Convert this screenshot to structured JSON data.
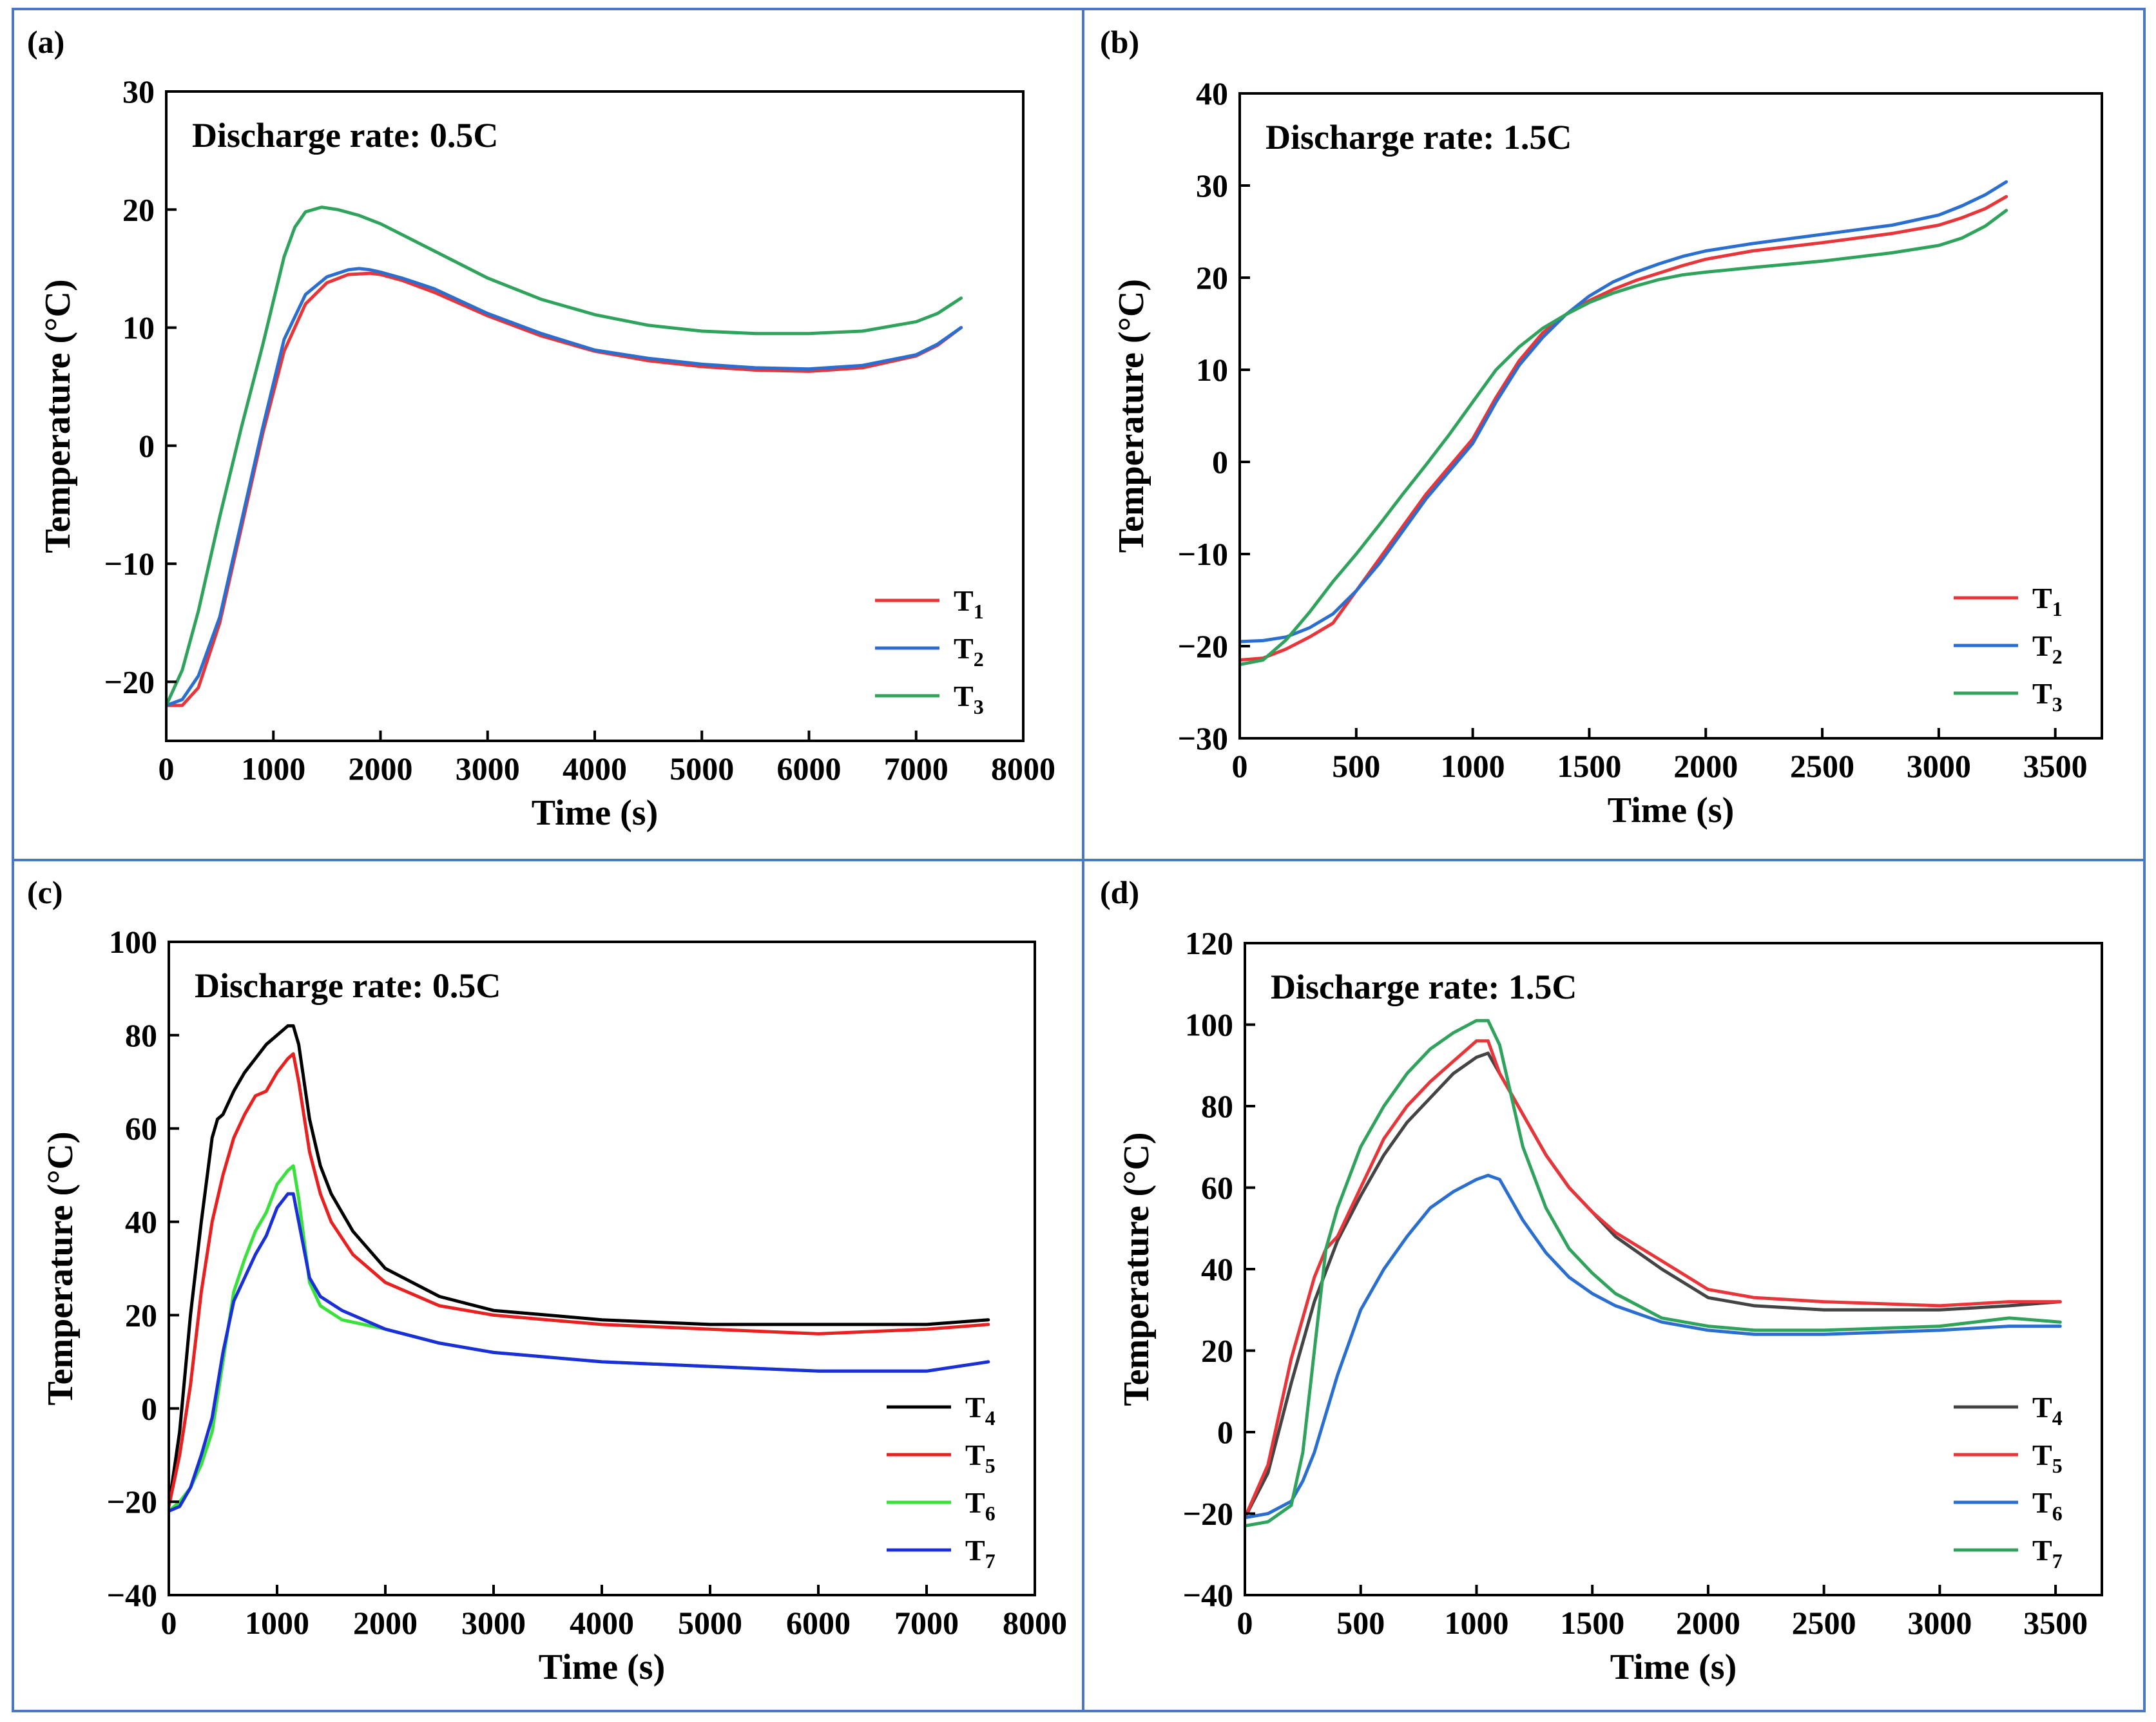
{
  "colors": {
    "frame": "#4a78c4",
    "T1": "#e8353a",
    "T2": "#2a6fd0",
    "T3": "#2fa35c",
    "T4c": "#000000",
    "T5c": "#e8201f",
    "T6c": "#38e23a",
    "T7c": "#1b2fd8",
    "T4d": "#444444",
    "T5d": "#e8353a",
    "T6d": "#2a6fd0",
    "T7d": "#2fa35c"
  },
  "chart_data": [
    {
      "id": "a",
      "panel_label": "(a)",
      "type": "line",
      "annotation": "Discharge rate: 0.5C",
      "xlabel": "Time (s)",
      "ylabel": "Temperature (°C)",
      "xlim": [
        0,
        8000
      ],
      "ylim": [
        -25,
        30
      ],
      "xticks": [
        0,
        1000,
        2000,
        3000,
        4000,
        5000,
        6000,
        7000,
        8000
      ],
      "yticks": [
        -20,
        -10,
        0,
        10,
        20,
        30
      ],
      "ytick_labels": [
        "−20",
        "−10",
        "0",
        "10",
        "20",
        "30"
      ],
      "legend_position": "bottom-right",
      "series": [
        {
          "name": "T",
          "sub": "1",
          "color_key": "T1",
          "x": [
            0,
            150,
            300,
            500,
            700,
            900,
            1100,
            1300,
            1500,
            1700,
            1900,
            2000,
            2200,
            2500,
            3000,
            3500,
            4000,
            4500,
            5000,
            5500,
            6000,
            6500,
            7000,
            7200,
            7420
          ],
          "y": [
            -22,
            -22,
            -20.5,
            -15,
            -7,
            1,
            8,
            12,
            13.8,
            14.5,
            14.6,
            14.5,
            14,
            13,
            11,
            9.3,
            8,
            7.2,
            6.7,
            6.4,
            6.3,
            6.6,
            7.6,
            8.5,
            10
          ]
        },
        {
          "name": "T",
          "sub": "2",
          "color_key": "T2",
          "x": [
            0,
            150,
            300,
            500,
            700,
            900,
            1100,
            1300,
            1500,
            1700,
            1800,
            1900,
            2000,
            2200,
            2500,
            3000,
            3500,
            4000,
            4500,
            5000,
            5500,
            6000,
            6500,
            7000,
            7200,
            7420
          ],
          "y": [
            -22,
            -21.5,
            -19.5,
            -14.5,
            -6.5,
            1.5,
            9,
            12.8,
            14.3,
            14.9,
            15,
            14.9,
            14.7,
            14.2,
            13.3,
            11.2,
            9.5,
            8.1,
            7.4,
            6.9,
            6.6,
            6.5,
            6.8,
            7.7,
            8.6,
            10
          ]
        },
        {
          "name": "T",
          "sub": "3",
          "color_key": "T3",
          "x": [
            0,
            150,
            300,
            500,
            700,
            900,
            1100,
            1200,
            1300,
            1450,
            1600,
            1800,
            2000,
            2500,
            3000,
            3500,
            4000,
            4500,
            5000,
            5500,
            6000,
            6500,
            7000,
            7200,
            7420
          ],
          "y": [
            -22,
            -19,
            -14,
            -6,
            1.5,
            8.5,
            16,
            18.5,
            19.8,
            20.2,
            20,
            19.5,
            18.8,
            16.5,
            14.2,
            12.4,
            11.1,
            10.2,
            9.7,
            9.5,
            9.5,
            9.7,
            10.5,
            11.2,
            12.5
          ]
        }
      ]
    },
    {
      "id": "b",
      "panel_label": "(b)",
      "type": "line",
      "annotation": "Discharge rate: 1.5C",
      "xlabel": "Time (s)",
      "ylabel": "Temperature (°C)",
      "xlim": [
        0,
        3700
      ],
      "ylim": [
        -30,
        40
      ],
      "xticks": [
        0,
        500,
        1000,
        1500,
        2000,
        2500,
        3000,
        3500
      ],
      "yticks": [
        -30,
        -20,
        -10,
        0,
        10,
        20,
        30,
        40
      ],
      "ytick_labels": [
        "−30",
        "−20",
        "−10",
        "0",
        "10",
        "20",
        "30",
        "40"
      ],
      "legend_position": "bottom-right",
      "series": [
        {
          "name": "T",
          "sub": "1",
          "color_key": "T1",
          "x": [
            0,
            100,
            200,
            300,
            400,
            500,
            600,
            700,
            800,
            900,
            1000,
            1100,
            1200,
            1300,
            1400,
            1500,
            1600,
            1700,
            1800,
            1900,
            2000,
            2200,
            2500,
            2800,
            3000,
            3100,
            3200,
            3290
          ],
          "y": [
            -21.5,
            -21.3,
            -20.3,
            -19,
            -17.5,
            -14,
            -10.5,
            -7,
            -3.5,
            -0.5,
            2.5,
            7,
            11,
            14,
            16,
            17.5,
            18.7,
            19.7,
            20.5,
            21.3,
            22,
            22.9,
            23.8,
            24.8,
            25.7,
            26.5,
            27.5,
            28.8
          ]
        },
        {
          "name": "T",
          "sub": "2",
          "color_key": "T2",
          "x": [
            0,
            100,
            200,
            300,
            400,
            500,
            600,
            700,
            800,
            900,
            1000,
            1100,
            1200,
            1300,
            1400,
            1500,
            1600,
            1700,
            1800,
            1900,
            2000,
            2200,
            2500,
            2800,
            3000,
            3100,
            3200,
            3290
          ],
          "y": [
            -19.5,
            -19.4,
            -19,
            -18,
            -16.5,
            -14,
            -11,
            -7.5,
            -4,
            -1,
            2,
            6.5,
            10.5,
            13.5,
            16,
            18,
            19.5,
            20.6,
            21.5,
            22.3,
            22.9,
            23.7,
            24.7,
            25.7,
            26.8,
            27.8,
            29,
            30.4
          ]
        },
        {
          "name": "T",
          "sub": "3",
          "color_key": "T3",
          "x": [
            0,
            100,
            200,
            300,
            400,
            500,
            600,
            700,
            800,
            900,
            1000,
            1100,
            1200,
            1300,
            1400,
            1500,
            1600,
            1700,
            1800,
            1900,
            2000,
            2200,
            2500,
            2800,
            3000,
            3100,
            3200,
            3290
          ],
          "y": [
            -22,
            -21.5,
            -19.3,
            -16.3,
            -13,
            -10,
            -6.8,
            -3.5,
            -0.3,
            3,
            6.5,
            10,
            12.5,
            14.5,
            16,
            17.3,
            18.3,
            19.1,
            19.8,
            20.3,
            20.6,
            21.1,
            21.8,
            22.7,
            23.5,
            24.3,
            25.6,
            27.3
          ]
        }
      ]
    },
    {
      "id": "c",
      "panel_label": "(c)",
      "type": "line",
      "annotation": "Discharge rate: 0.5C",
      "xlabel": "Time (s)",
      "ylabel": "Temperature (°C)",
      "xlim": [
        0,
        8000
      ],
      "ylim": [
        -40,
        100
      ],
      "xticks": [
        0,
        1000,
        2000,
        3000,
        4000,
        5000,
        6000,
        7000,
        8000
      ],
      "yticks": [
        -40,
        -20,
        0,
        20,
        40,
        60,
        80,
        100
      ],
      "ytick_labels": [
        "−40",
        "−20",
        "0",
        "20",
        "40",
        "60",
        "80",
        "100"
      ],
      "legend_position": "bottom-right",
      "series": [
        {
          "name": "T",
          "sub": "4",
          "color_key": "T4c",
          "x": [
            0,
            100,
            200,
            300,
            400,
            450,
            500,
            600,
            700,
            800,
            900,
            1000,
            1100,
            1150,
            1200,
            1300,
            1400,
            1500,
            1700,
            2000,
            2500,
            3000,
            3500,
            4000,
            5000,
            6000,
            7000,
            7570
          ],
          "y": [
            -21,
            -5,
            20,
            40,
            58,
            62,
            63,
            68,
            72,
            75,
            78,
            80,
            82,
            82,
            78,
            62,
            52,
            46,
            38,
            30,
            24,
            21,
            20,
            19,
            18,
            18,
            18,
            19
          ]
        },
        {
          "name": "T",
          "sub": "5",
          "color_key": "T5c",
          "x": [
            0,
            100,
            200,
            300,
            400,
            500,
            600,
            700,
            800,
            900,
            1000,
            1100,
            1150,
            1200,
            1300,
            1400,
            1500,
            1700,
            2000,
            2500,
            3000,
            3500,
            4000,
            5000,
            6000,
            7000,
            7570
          ],
          "y": [
            -21,
            -10,
            5,
            25,
            40,
            50,
            58,
            63,
            67,
            68,
            72,
            75,
            76,
            70,
            55,
            46,
            40,
            33,
            27,
            22,
            20,
            19,
            18,
            17,
            16,
            17,
            18
          ]
        },
        {
          "name": "T",
          "sub": "6",
          "color_key": "T6c",
          "x": [
            0,
            100,
            200,
            300,
            400,
            500,
            600,
            700,
            800,
            900,
            1000,
            1100,
            1150,
            1200,
            1300,
            1400,
            1600,
            2000,
            2500,
            3000,
            3500,
            4000,
            5000,
            6000,
            7000,
            7570
          ],
          "y": [
            -22,
            -20,
            -17,
            -12,
            -5,
            10,
            25,
            32,
            38,
            42,
            48,
            51,
            52,
            45,
            27,
            22,
            19,
            17,
            14,
            12,
            11,
            10,
            9,
            8,
            8,
            10
          ]
        },
        {
          "name": "T",
          "sub": "7",
          "color_key": "T7c",
          "x": [
            0,
            100,
            200,
            300,
            400,
            500,
            600,
            700,
            800,
            900,
            1000,
            1100,
            1150,
            1200,
            1300,
            1400,
            1600,
            2000,
            2500,
            3000,
            3500,
            4000,
            5000,
            6000,
            7000,
            7570
          ],
          "y": [
            -22,
            -21,
            -17,
            -10,
            -2,
            12,
            23,
            28,
            33,
            37,
            43,
            46,
            46,
            40,
            28,
            24,
            21,
            17,
            14,
            12,
            11,
            10,
            9,
            8,
            8,
            10
          ]
        }
      ]
    },
    {
      "id": "d",
      "panel_label": "(d)",
      "type": "line",
      "annotation": "Discharge rate: 1.5C",
      "xlabel": "Time (s)",
      "ylabel": "Temperature (°C)",
      "xlim": [
        0,
        3700
      ],
      "ylim": [
        -40,
        120
      ],
      "xticks": [
        0,
        500,
        1000,
        1500,
        2000,
        2500,
        3000,
        3500
      ],
      "yticks": [
        -40,
        -20,
        0,
        20,
        40,
        60,
        80,
        100,
        120
      ],
      "ytick_labels": [
        "−40",
        "−20",
        "0",
        "20",
        "40",
        "60",
        "80",
        "100",
        "120"
      ],
      "legend_position": "bottom-right",
      "series": [
        {
          "name": "T",
          "sub": "4",
          "color_key": "T4d",
          "x": [
            0,
            100,
            200,
            300,
            400,
            500,
            600,
            700,
            800,
            900,
            1000,
            1050,
            1100,
            1200,
            1300,
            1400,
            1500,
            1600,
            1800,
            2000,
            2200,
            2500,
            3000,
            3300,
            3520
          ],
          "y": [
            -21,
            -10,
            12,
            32,
            47,
            58,
            68,
            76,
            82,
            88,
            92,
            93,
            88,
            78,
            68,
            60,
            54,
            48,
            40,
            33,
            31,
            30,
            30,
            31,
            32
          ]
        },
        {
          "name": "T",
          "sub": "5",
          "color_key": "T5d",
          "x": [
            0,
            100,
            200,
            300,
            350,
            400,
            500,
            600,
            700,
            800,
            900,
            1000,
            1050,
            1100,
            1200,
            1300,
            1400,
            1500,
            1600,
            1800,
            2000,
            2200,
            2500,
            3000,
            3300,
            3520
          ],
          "y": [
            -21,
            -8,
            18,
            38,
            45,
            48,
            60,
            72,
            80,
            86,
            91,
            96,
            96,
            88,
            78,
            68,
            60,
            54,
            49,
            42,
            35,
            33,
            32,
            31,
            32,
            32
          ]
        },
        {
          "name": "T",
          "sub": "6",
          "color_key": "T6d",
          "x": [
            0,
            100,
            200,
            250,
            300,
            400,
            500,
            600,
            700,
            800,
            900,
            1000,
            1050,
            1100,
            1200,
            1300,
            1400,
            1500,
            1600,
            1800,
            2000,
            2200,
            2500,
            3000,
            3300,
            3520
          ],
          "y": [
            -21,
            -20,
            -17,
            -12,
            -5,
            14,
            30,
            40,
            48,
            55,
            59,
            62,
            63,
            62,
            52,
            44,
            38,
            34,
            31,
            27,
            25,
            24,
            24,
            25,
            26,
            26
          ]
        },
        {
          "name": "T",
          "sub": "7",
          "color_key": "T7d",
          "x": [
            0,
            100,
            200,
            250,
            300,
            350,
            400,
            500,
            600,
            700,
            800,
            900,
            1000,
            1050,
            1100,
            1200,
            1300,
            1400,
            1500,
            1600,
            1800,
            2000,
            2200,
            2500,
            3000,
            3300,
            3520
          ],
          "y": [
            -23,
            -22,
            -18,
            -5,
            20,
            45,
            55,
            70,
            80,
            88,
            94,
            98,
            101,
            101,
            95,
            70,
            55,
            45,
            39,
            34,
            28,
            26,
            25,
            25,
            26,
            28,
            27
          ]
        }
      ]
    }
  ]
}
